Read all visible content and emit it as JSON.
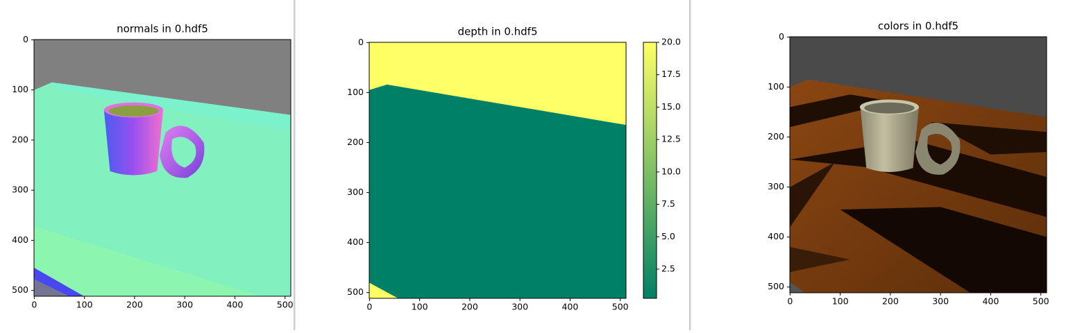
{
  "panels": [
    {
      "title": "normals in 0.hdf5",
      "xlim": [
        -0.5,
        511.5
      ],
      "ylim": [
        511.5,
        -0.5
      ],
      "xticks": [
        0,
        100,
        200,
        300,
        400,
        500
      ],
      "yticks": [
        0,
        100,
        200,
        300,
        400,
        500
      ]
    },
    {
      "title": "depth in 0.hdf5",
      "xlim": [
        -0.5,
        511.5
      ],
      "ylim": [
        511.5,
        -0.5
      ],
      "xticks": [
        0,
        100,
        200,
        300,
        400,
        500
      ],
      "yticks": [
        0,
        100,
        200,
        300,
        400,
        500
      ],
      "colorbar": {
        "clim": [
          0.25,
          20
        ],
        "colors": [
          "#008066",
          "#ffff66"
        ],
        "ticks": [
          {
            "value": 20,
            "label": "20.0"
          },
          17.5,
          {
            "value": 15,
            "label": "15.0"
          },
          12.5,
          {
            "value": 10,
            "label": "10.0"
          },
          7.5,
          {
            "value": 5,
            "label": "5.0"
          },
          2.5
        ]
      }
    },
    {
      "title": "colors in 0.hdf5",
      "xlim": [
        -0.5,
        511.5
      ],
      "ylim": [
        511.5,
        -0.5
      ],
      "xticks": [
        0,
        100,
        200,
        300,
        400,
        500
      ],
      "yticks": [
        0,
        100,
        200,
        300,
        400,
        500
      ]
    }
  ]
}
